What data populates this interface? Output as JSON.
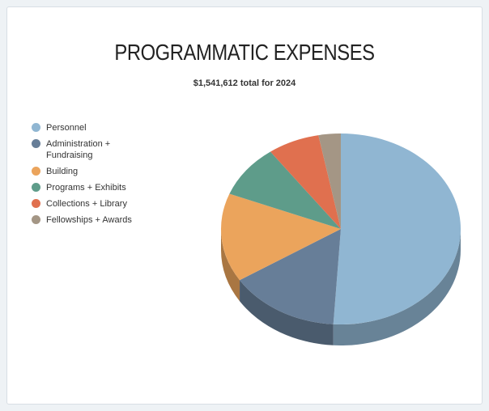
{
  "chart_data": {
    "type": "pie",
    "title": "PROGRAMMATIC EXPENSES",
    "subtitle": "$1,541,612 total for 2024",
    "categories": [
      "Personnel",
      "Administration + Fundraising",
      "Building",
      "Programs + Exhibits",
      "Collections + Library",
      "Fellowships + Awards"
    ],
    "values": [
      51,
      15,
      15,
      9,
      7,
      3
    ],
    "colors": [
      "#90b6d2",
      "#677e98",
      "#eba45c",
      "#5e9c8a",
      "#e0704f",
      "#a49685"
    ],
    "legend": "left"
  }
}
